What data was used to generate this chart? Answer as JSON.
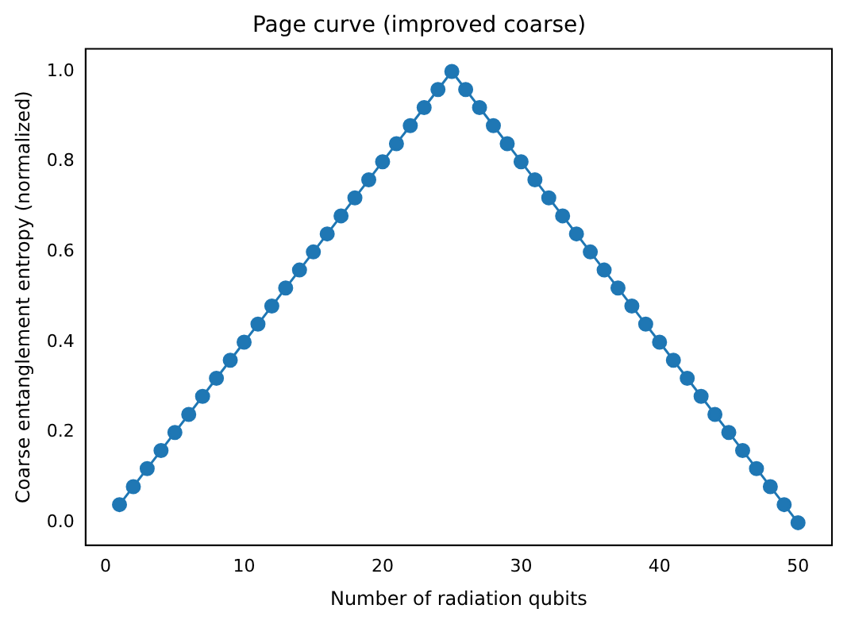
{
  "chart_data": {
    "type": "line",
    "title": "Page curve (improved coarse)",
    "xlabel": "Number of radiation qubits",
    "ylabel": "Coarse entanglement entropy (normalized)",
    "x": [
      1,
      2,
      3,
      4,
      5,
      6,
      7,
      8,
      9,
      10,
      11,
      12,
      13,
      14,
      15,
      16,
      17,
      18,
      19,
      20,
      21,
      22,
      23,
      24,
      25,
      26,
      27,
      28,
      29,
      30,
      31,
      32,
      33,
      34,
      35,
      36,
      37,
      38,
      39,
      40,
      41,
      42,
      43,
      44,
      45,
      46,
      47,
      48,
      49,
      50
    ],
    "series": [
      {
        "color": "#1f77b4",
        "values": [
          0.04,
          0.08,
          0.12,
          0.16,
          0.2,
          0.24,
          0.28,
          0.32,
          0.36,
          0.4,
          0.44,
          0.48,
          0.52,
          0.56,
          0.6,
          0.64,
          0.68,
          0.72,
          0.76,
          0.8,
          0.84,
          0.88,
          0.92,
          0.96,
          1,
          0.96,
          0.92,
          0.88,
          0.84,
          0.8,
          0.76,
          0.72,
          0.68,
          0.64,
          0.6,
          0.56,
          0.52,
          0.48,
          0.44,
          0.4,
          0.36,
          0.32,
          0.28,
          0.24,
          0.2,
          0.16,
          0.12,
          0.08,
          0.04,
          0
        ]
      }
    ],
    "xlim": [
      -1.45,
      52.45
    ],
    "xticks": [
      0,
      10,
      20,
      30,
      40,
      50
    ],
    "ylim": [
      -0.05,
      1.05
    ],
    "yticks": [
      {
        "value": 0,
        "label": "0.0"
      },
      0.2,
      0.4,
      0.6,
      0.8,
      {
        "value": 1,
        "label": "1.0"
      }
    ],
    "marker": "circle",
    "line_style": "solid",
    "grid": false,
    "legend": false
  }
}
